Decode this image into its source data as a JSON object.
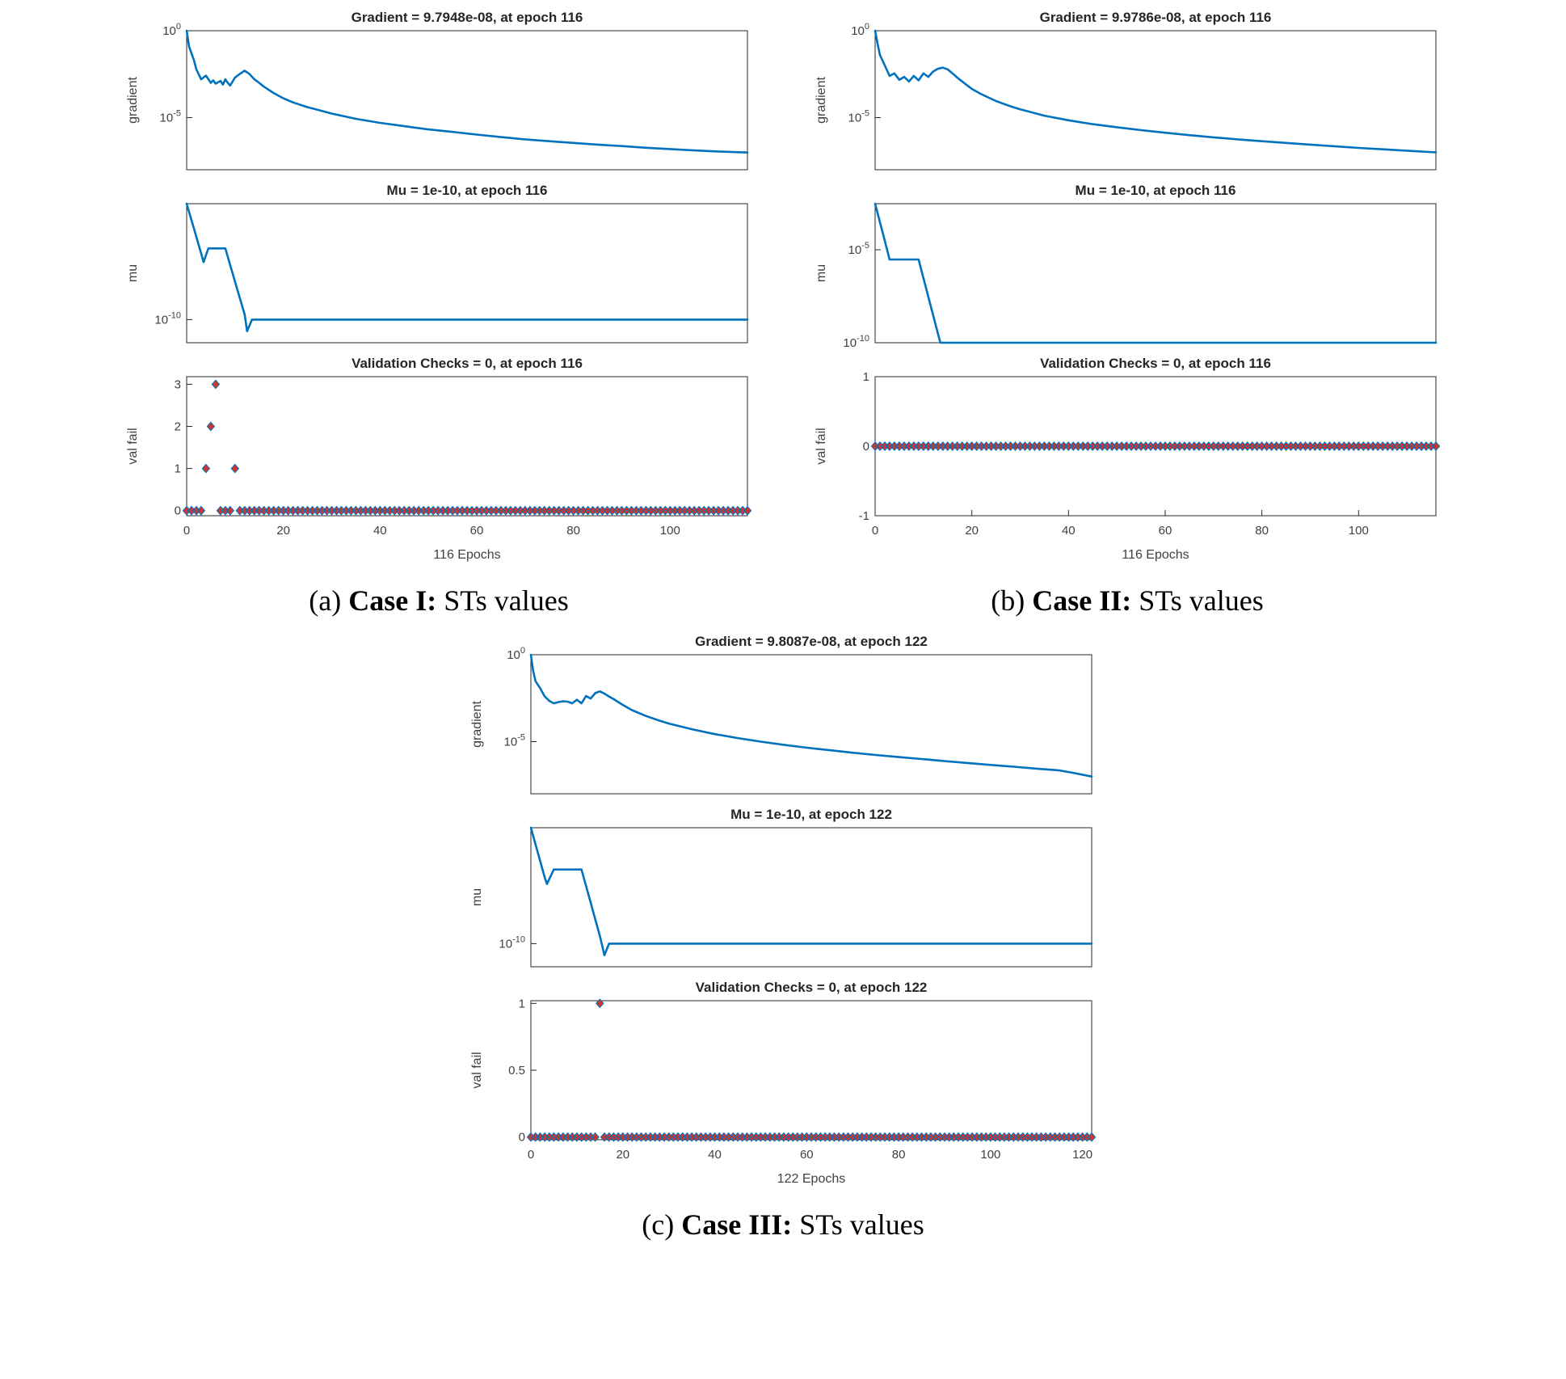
{
  "colors": {
    "line": "#0072BD",
    "marker_fill": "#D1352B",
    "marker_edge": "#0072BD",
    "axis": "#262626",
    "tick_text": "#404040",
    "title_text": "#262626"
  },
  "chart_data": [
    {
      "panel": "a",
      "caption": {
        "prefix": "(a) ",
        "bold": "Case I:",
        "rest": " STs values"
      },
      "subplots": [
        {
          "type": "line",
          "title": "Gradient = 9.7948e-08, at epoch 116",
          "ylabel": "gradient",
          "yscale": "log",
          "ylim": [
            1e-08,
            1
          ],
          "yticks": [
            {
              "v": 1,
              "label": "10^0"
            },
            {
              "v": 1e-05,
              "label": "10^-5"
            }
          ],
          "xlim": [
            0,
            116
          ],
          "xticks": [],
          "line": [
            [
              0,
              1
            ],
            [
              0.5,
              0.12
            ],
            [
              1,
              0.05
            ],
            [
              1.5,
              0.02
            ],
            [
              2,
              0.006
            ],
            [
              3,
              0.0016
            ],
            [
              4,
              0.0026
            ],
            [
              5,
              0.001
            ],
            [
              5.5,
              0.0014
            ],
            [
              6,
              0.0009
            ],
            [
              7,
              0.0013
            ],
            [
              7.5,
              0.0008
            ],
            [
              8,
              0.0016
            ],
            [
              8.5,
              0.001
            ],
            [
              9,
              0.0007
            ],
            [
              10,
              0.002
            ],
            [
              11,
              0.0033
            ],
            [
              12,
              0.005
            ],
            [
              13,
              0.0032
            ],
            [
              14,
              0.0016
            ],
            [
              15,
              0.001
            ],
            [
              16,
              0.0006
            ],
            [
              18,
              0.00026
            ],
            [
              20,
              0.00013
            ],
            [
              22,
              7.5e-05
            ],
            [
              25,
              4e-05
            ],
            [
              28,
              2.4e-05
            ],
            [
              30,
              1.7e-05
            ],
            [
              35,
              8.5e-06
            ],
            [
              40,
              5e-06
            ],
            [
              45,
              3.2e-06
            ],
            [
              50,
              2.1e-06
            ],
            [
              55,
              1.5e-06
            ],
            [
              60,
              1.05e-06
            ],
            [
              65,
              7.6e-07
            ],
            [
              70,
              5.6e-07
            ],
            [
              75,
              4.4e-07
            ],
            [
              80,
              3.5e-07
            ],
            [
              85,
              2.8e-07
            ],
            [
              90,
              2.3e-07
            ],
            [
              95,
              1.85e-07
            ],
            [
              100,
              1.55e-07
            ],
            [
              105,
              1.3e-07
            ],
            [
              110,
              1.12e-07
            ],
            [
              116,
              9.7948e-08
            ]
          ]
        },
        {
          "type": "line",
          "title": "Mu = 1e-10, at epoch 116",
          "ylabel": "mu",
          "yscale": "log",
          "ylim": [
            4e-12,
            0.001
          ],
          "yticks": [
            {
              "v": 1e-10,
              "label": "10^-10"
            }
          ],
          "xlim": [
            0,
            116
          ],
          "xticks": [],
          "line": [
            [
              0,
              0.001
            ],
            [
              1,
              0.0001
            ],
            [
              2,
              1e-05
            ],
            [
              3,
              1e-06
            ],
            [
              3.5,
              3e-07
            ],
            [
              4.5,
              2e-06
            ],
            [
              8,
              2e-06
            ],
            [
              9,
              2e-07
            ],
            [
              10,
              2e-08
            ],
            [
              11,
              2e-09
            ],
            [
              12,
              2e-10
            ],
            [
              12.5,
              2e-11
            ],
            [
              13.5,
              1e-10
            ],
            [
              116,
              1e-10
            ]
          ]
        },
        {
          "type": "scatter",
          "title": "Validation Checks = 0, at epoch 116",
          "ylabel": "val fail",
          "xlabel": "116 Epochs",
          "yscale": "linear",
          "ylim": [
            -0.12,
            3.18
          ],
          "yticks": [
            {
              "v": 0,
              "label": "0"
            },
            {
              "v": 1,
              "label": "1"
            },
            {
              "v": 2,
              "label": "2"
            },
            {
              "v": 3,
              "label": "3"
            }
          ],
          "xlim": [
            0,
            116
          ],
          "xticks": [
            {
              "v": 0,
              "label": "0"
            },
            {
              "v": 20,
              "label": "20"
            },
            {
              "v": 40,
              "label": "40"
            },
            {
              "v": 60,
              "label": "60"
            },
            {
              "v": 80,
              "label": "80"
            },
            {
              "v": 100,
              "label": "100"
            }
          ],
          "epochs": 116,
          "points": [
            [
              4,
              1
            ],
            [
              5,
              2
            ],
            [
              6,
              3
            ],
            [
              10,
              1
            ]
          ]
        }
      ]
    },
    {
      "panel": "b",
      "caption": {
        "prefix": "(b) ",
        "bold": "Case II:",
        "rest": " STs values"
      },
      "subplots": [
        {
          "type": "line",
          "title": "Gradient = 9.9786e-08, at epoch 116",
          "ylabel": "gradient",
          "yscale": "log",
          "ylim": [
            1e-08,
            1
          ],
          "yticks": [
            {
              "v": 1,
              "label": "10^0"
            },
            {
              "v": 1e-05,
              "label": "10^-5"
            }
          ],
          "xlim": [
            0,
            116
          ],
          "xticks": [],
          "line": [
            [
              0,
              1
            ],
            [
              0.5,
              0.18
            ],
            [
              1,
              0.04
            ],
            [
              2,
              0.01
            ],
            [
              3,
              0.0025
            ],
            [
              4,
              0.0035
            ],
            [
              5,
              0.0015
            ],
            [
              6,
              0.0022
            ],
            [
              7,
              0.0012
            ],
            [
              8,
              0.0025
            ],
            [
              9,
              0.0014
            ],
            [
              10,
              0.0035
            ],
            [
              11,
              0.0022
            ],
            [
              12,
              0.0045
            ],
            [
              13,
              0.0065
            ],
            [
              14,
              0.0075
            ],
            [
              15,
              0.006
            ],
            [
              16,
              0.0035
            ],
            [
              17,
              0.002
            ],
            [
              18,
              0.0012
            ],
            [
              20,
              0.00045
            ],
            [
              22,
              0.00022
            ],
            [
              25,
              9e-05
            ],
            [
              28,
              4.5e-05
            ],
            [
              30,
              3e-05
            ],
            [
              35,
              1.3e-05
            ],
            [
              40,
              7e-06
            ],
            [
              45,
              4.2e-06
            ],
            [
              50,
              2.8e-06
            ],
            [
              55,
              1.9e-06
            ],
            [
              60,
              1.35e-06
            ],
            [
              65,
              9.8e-07
            ],
            [
              70,
              7.3e-07
            ],
            [
              75,
              5.6e-07
            ],
            [
              80,
              4.4e-07
            ],
            [
              85,
              3.5e-07
            ],
            [
              90,
              2.8e-07
            ],
            [
              95,
              2.25e-07
            ],
            [
              100,
              1.8e-07
            ],
            [
              105,
              1.5e-07
            ],
            [
              110,
              1.25e-07
            ],
            [
              116,
              9.9786e-08
            ]
          ]
        },
        {
          "type": "line",
          "title": "Mu = 1e-10, at epoch 116",
          "ylabel": "mu",
          "yscale": "log",
          "ylim": [
            1e-10,
            0.003
          ],
          "yticks": [
            {
              "v": 1e-05,
              "label": "10^-5"
            },
            {
              "v": 1e-10,
              "label": "10^-10"
            }
          ],
          "xlim": [
            0,
            116
          ],
          "xticks": [],
          "line": [
            [
              0,
              0.003
            ],
            [
              1,
              0.0003
            ],
            [
              2,
              3e-05
            ],
            [
              3,
              3e-06
            ],
            [
              9,
              3e-06
            ],
            [
              10,
              3e-07
            ],
            [
              11,
              3e-08
            ],
            [
              12,
              3e-09
            ],
            [
              13,
              3e-10
            ],
            [
              13.5,
              1e-10
            ],
            [
              116,
              1e-10
            ]
          ]
        },
        {
          "type": "scatter",
          "title": "Validation Checks = 0, at epoch 116",
          "ylabel": "val fail",
          "xlabel": "116 Epochs",
          "yscale": "linear",
          "ylim": [
            -1,
            1
          ],
          "yticks": [
            {
              "v": -1,
              "label": "-1"
            },
            {
              "v": 0,
              "label": "0"
            },
            {
              "v": 1,
              "label": "1"
            }
          ],
          "xlim": [
            0,
            116
          ],
          "xticks": [
            {
              "v": 0,
              "label": "0"
            },
            {
              "v": 20,
              "label": "20"
            },
            {
              "v": 40,
              "label": "40"
            },
            {
              "v": 60,
              "label": "60"
            },
            {
              "v": 80,
              "label": "80"
            },
            {
              "v": 100,
              "label": "100"
            }
          ],
          "epochs": 116,
          "points": []
        }
      ]
    },
    {
      "panel": "c",
      "caption": {
        "prefix": "(c) ",
        "bold": "Case III:",
        "rest": " STs values"
      },
      "subplots": [
        {
          "type": "line",
          "title": "Gradient = 9.8087e-08, at epoch 122",
          "ylabel": "gradient",
          "yscale": "log",
          "ylim": [
            1e-08,
            1
          ],
          "yticks": [
            {
              "v": 1,
              "label": "10^0"
            },
            {
              "v": 1e-05,
              "label": "10^-5"
            }
          ],
          "xlim": [
            0,
            122
          ],
          "xticks": [],
          "line": [
            [
              0,
              1
            ],
            [
              0.5,
              0.12
            ],
            [
              1,
              0.03
            ],
            [
              2,
              0.012
            ],
            [
              3,
              0.004
            ],
            [
              4,
              0.0022
            ],
            [
              5,
              0.0016
            ],
            [
              6,
              0.0019
            ],
            [
              7,
              0.0021
            ],
            [
              8,
              0.002
            ],
            [
              9,
              0.0016
            ],
            [
              10,
              0.0026
            ],
            [
              11,
              0.0016
            ],
            [
              12,
              0.0042
            ],
            [
              13,
              0.003
            ],
            [
              14,
              0.0062
            ],
            [
              15,
              0.0078
            ],
            [
              16,
              0.0058
            ],
            [
              17,
              0.004
            ],
            [
              18,
              0.0028
            ],
            [
              20,
              0.0013
            ],
            [
              22,
              0.00065
            ],
            [
              25,
              0.0003
            ],
            [
              28,
              0.00016
            ],
            [
              30,
              0.00011
            ],
            [
              35,
              5.2e-05
            ],
            [
              40,
              2.7e-05
            ],
            [
              45,
              1.6e-05
            ],
            [
              50,
              1e-05
            ],
            [
              55,
              6.6e-06
            ],
            [
              60,
              4.5e-06
            ],
            [
              65,
              3.2e-06
            ],
            [
              70,
              2.3e-06
            ],
            [
              75,
              1.7e-06
            ],
            [
              80,
              1.3e-06
            ],
            [
              85,
              1e-06
            ],
            [
              90,
              7.6e-07
            ],
            [
              95,
              5.9e-07
            ],
            [
              100,
              4.6e-07
            ],
            [
              105,
              3.6e-07
            ],
            [
              110,
              2.8e-07
            ],
            [
              115,
              2.2e-07
            ],
            [
              118,
              1.6e-07
            ],
            [
              122,
              9.8087e-08
            ]
          ]
        },
        {
          "type": "line",
          "title": "Mu = 1e-10, at epoch 122",
          "ylabel": "mu",
          "yscale": "log",
          "ylim": [
            4e-12,
            0.001
          ],
          "yticks": [
            {
              "v": 1e-10,
              "label": "10^-10"
            }
          ],
          "xlim": [
            0,
            122
          ],
          "xticks": [],
          "line": [
            [
              0,
              0.001
            ],
            [
              1,
              0.0001
            ],
            [
              2,
              1e-05
            ],
            [
              3,
              1e-06
            ],
            [
              3.5,
              4e-07
            ],
            [
              5,
              3e-06
            ],
            [
              11,
              3e-06
            ],
            [
              12,
              3e-07
            ],
            [
              13,
              3e-08
            ],
            [
              14,
              3e-09
            ],
            [
              15,
              3e-10
            ],
            [
              16,
              2e-11
            ],
            [
              17,
              1e-10
            ],
            [
              122,
              1e-10
            ]
          ]
        },
        {
          "type": "scatter",
          "title": "Validation Checks = 0, at epoch 122",
          "ylabel": "val fail",
          "xlabel": "122 Epochs",
          "yscale": "linear",
          "ylim": [
            -0.02,
            1.02
          ],
          "yticks": [
            {
              "v": 0,
              "label": "0"
            },
            {
              "v": 0.5,
              "label": "0.5"
            },
            {
              "v": 1,
              "label": "1"
            }
          ],
          "xlim": [
            0,
            122
          ],
          "xticks": [
            {
              "v": 0,
              "label": "0"
            },
            {
              "v": 20,
              "label": "20"
            },
            {
              "v": 40,
              "label": "40"
            },
            {
              "v": 60,
              "label": "60"
            },
            {
              "v": 80,
              "label": "80"
            },
            {
              "v": 100,
              "label": "100"
            },
            {
              "v": 120,
              "label": "120"
            }
          ],
          "epochs": 122,
          "points": [
            [
              15,
              1
            ]
          ]
        }
      ]
    }
  ]
}
